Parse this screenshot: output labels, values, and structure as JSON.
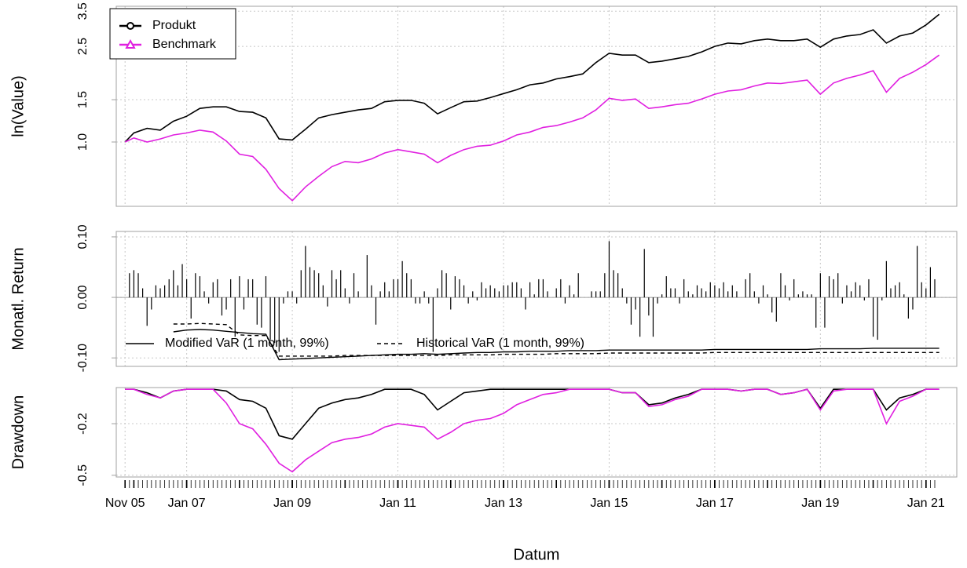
{
  "chart_data": [
    {
      "type": "line",
      "ylabel": "ln(Value)",
      "log": true,
      "ylim": [
        0.54,
        3.67
      ],
      "yticks": [
        {
          "value": 1,
          "label": "1.0"
        },
        1.5,
        2.5,
        3.5
      ],
      "grid": true,
      "legend": "topleft",
      "x": [
        "2005-11",
        "2006-01",
        "2006-04",
        "2006-07",
        "2006-10",
        "2007-01",
        "2007-04",
        "2007-07",
        "2007-10",
        "2008-01",
        "2008-04",
        "2008-07",
        "2008-10",
        "2009-01",
        "2009-04",
        "2009-07",
        "2009-10",
        "2010-01",
        "2010-04",
        "2010-07",
        "2010-10",
        "2011-01",
        "2011-04",
        "2011-07",
        "2011-10",
        "2012-01",
        "2012-04",
        "2012-07",
        "2012-10",
        "2013-01",
        "2013-04",
        "2013-07",
        "2013-10",
        "2014-01",
        "2014-04",
        "2014-07",
        "2014-10",
        "2015-01",
        "2015-04",
        "2015-07",
        "2015-10",
        "2016-01",
        "2016-04",
        "2016-07",
        "2016-10",
        "2017-01",
        "2017-04",
        "2017-07",
        "2017-10",
        "2018-01",
        "2018-04",
        "2018-07",
        "2018-10",
        "2019-01",
        "2019-04",
        "2019-07",
        "2019-10",
        "2020-01",
        "2020-04",
        "2020-07",
        "2020-10",
        "2021-01",
        "2021-04"
      ],
      "series": [
        {
          "name": "Produkt",
          "color": "#000000",
          "marker": "circle",
          "values": [
            1.0,
            1.09,
            1.14,
            1.12,
            1.22,
            1.28,
            1.38,
            1.4,
            1.4,
            1.34,
            1.33,
            1.26,
            1.03,
            1.02,
            1.13,
            1.26,
            1.3,
            1.33,
            1.36,
            1.38,
            1.47,
            1.49,
            1.49,
            1.45,
            1.31,
            1.39,
            1.47,
            1.48,
            1.53,
            1.59,
            1.65,
            1.73,
            1.76,
            1.83,
            1.87,
            1.92,
            2.14,
            2.34,
            2.3,
            2.3,
            2.14,
            2.17,
            2.22,
            2.27,
            2.37,
            2.5,
            2.58,
            2.56,
            2.64,
            2.68,
            2.64,
            2.64,
            2.68,
            2.48,
            2.68,
            2.76,
            2.8,
            2.93,
            2.58,
            2.76,
            2.84,
            3.07,
            3.4
          ]
        },
        {
          "name": "Benchmark",
          "color": "#e020e0",
          "marker": "triangle",
          "values": [
            1.0,
            1.04,
            1.0,
            1.03,
            1.07,
            1.09,
            1.12,
            1.1,
            1.01,
            0.89,
            0.87,
            0.77,
            0.64,
            0.57,
            0.65,
            0.72,
            0.79,
            0.83,
            0.82,
            0.85,
            0.9,
            0.93,
            0.91,
            0.89,
            0.82,
            0.88,
            0.93,
            0.96,
            0.97,
            1.01,
            1.07,
            1.1,
            1.15,
            1.17,
            1.21,
            1.26,
            1.36,
            1.52,
            1.49,
            1.51,
            1.38,
            1.4,
            1.43,
            1.45,
            1.51,
            1.58,
            1.63,
            1.65,
            1.71,
            1.76,
            1.75,
            1.78,
            1.81,
            1.58,
            1.76,
            1.84,
            1.9,
            1.98,
            1.61,
            1.84,
            1.95,
            2.1,
            2.3
          ]
        }
      ]
    },
    {
      "type": "bar",
      "ylabel": "Monatl. Return",
      "ylim": [
        -0.114,
        0.109
      ],
      "yticks": [
        {
          "value": 0.1,
          "label": "0.10"
        },
        {
          "value": 0,
          "label": "0.00"
        },
        {
          "value": -0.1,
          "label": "-0.10"
        }
      ],
      "grid": true,
      "color": "#000000",
      "x": [
        "2005-12",
        "2006-01",
        "2006-02",
        "2006-03",
        "2006-04",
        "2006-05",
        "2006-06",
        "2006-07",
        "2006-08",
        "2006-09",
        "2006-10",
        "2006-11",
        "2006-12",
        "2007-01",
        "2007-02",
        "2007-03",
        "2007-04",
        "2007-05",
        "2007-06",
        "2007-07",
        "2007-08",
        "2007-09",
        "2007-10",
        "2007-11",
        "2007-12",
        "2008-01",
        "2008-02",
        "2008-03",
        "2008-04",
        "2008-05",
        "2008-06",
        "2008-07",
        "2008-08",
        "2008-09",
        "2008-10",
        "2008-11",
        "2008-12",
        "2009-01",
        "2009-02",
        "2009-03",
        "2009-04",
        "2009-05",
        "2009-06",
        "2009-07",
        "2009-08",
        "2009-09",
        "2009-10",
        "2009-11",
        "2009-12",
        "2010-01",
        "2010-02",
        "2010-03",
        "2010-04",
        "2010-05",
        "2010-06",
        "2010-07",
        "2010-08",
        "2010-09",
        "2010-10",
        "2010-11",
        "2010-12",
        "2011-01",
        "2011-02",
        "2011-03",
        "2011-04",
        "2011-05",
        "2011-06",
        "2011-07",
        "2011-08",
        "2011-09",
        "2011-10",
        "2011-11",
        "2011-12",
        "2012-01",
        "2012-02",
        "2012-03",
        "2012-04",
        "2012-05",
        "2012-06",
        "2012-07",
        "2012-08",
        "2012-09",
        "2012-10",
        "2012-11",
        "2012-12",
        "2013-01",
        "2013-02",
        "2013-03",
        "2013-04",
        "2013-05",
        "2013-06",
        "2013-07",
        "2013-08",
        "2013-09",
        "2013-10",
        "2013-11",
        "2013-12",
        "2014-01",
        "2014-02",
        "2014-03",
        "2014-04",
        "2014-05",
        "2014-06",
        "2014-07",
        "2014-08",
        "2014-09",
        "2014-10",
        "2014-11",
        "2014-12",
        "2015-01",
        "2015-02",
        "2015-03",
        "2015-04",
        "2015-05",
        "2015-06",
        "2015-07",
        "2015-08",
        "2015-09",
        "2015-10",
        "2015-11",
        "2015-12",
        "2016-01",
        "2016-02",
        "2016-03",
        "2016-04",
        "2016-05",
        "2016-06",
        "2016-07",
        "2016-08",
        "2016-09",
        "2016-10",
        "2016-11",
        "2016-12",
        "2017-01",
        "2017-02",
        "2017-03",
        "2017-04",
        "2017-05",
        "2017-06",
        "2017-07",
        "2017-08",
        "2017-09",
        "2017-10",
        "2017-11",
        "2017-12",
        "2018-01",
        "2018-02",
        "2018-03",
        "2018-04",
        "2018-05",
        "2018-06",
        "2018-07",
        "2018-08",
        "2018-09",
        "2018-10",
        "2018-11",
        "2018-12",
        "2019-01",
        "2019-02",
        "2019-03",
        "2019-04",
        "2019-05",
        "2019-06",
        "2019-07",
        "2019-08",
        "2019-09",
        "2019-10",
        "2019-11",
        "2019-12",
        "2020-01",
        "2020-02",
        "2020-03",
        "2020-04",
        "2020-05",
        "2020-06",
        "2020-07",
        "2020-08",
        "2020-09",
        "2020-10",
        "2020-11",
        "2020-12",
        "2021-01",
        "2021-02",
        "2021-03"
      ],
      "values": [
        0.04,
        0.045,
        0.04,
        0.015,
        -0.047,
        -0.02,
        0.02,
        0.015,
        0.02,
        0.03,
        0.045,
        0.02,
        0.055,
        0.03,
        -0.035,
        0.04,
        0.035,
        0.01,
        -0.01,
        0.025,
        0.03,
        -0.03,
        -0.02,
        0.03,
        -0.065,
        0.035,
        -0.02,
        0.03,
        0.03,
        -0.045,
        -0.05,
        0.035,
        -0.07,
        -0.075,
        -0.09,
        -0.01,
        0.01,
        0.01,
        -0.01,
        0.045,
        0.085,
        0.05,
        0.045,
        0.04,
        0.02,
        -0.015,
        0.045,
        0.03,
        0.045,
        0.015,
        -0.01,
        0.04,
        0.01,
        0,
        0.07,
        0.02,
        -0.045,
        0.01,
        0.025,
        0.01,
        0.03,
        0.03,
        0.06,
        0.04,
        0.03,
        -0.01,
        -0.01,
        0.01,
        -0.01,
        -0.09,
        0.015,
        0.045,
        0.04,
        -0.02,
        0.035,
        0.03,
        0.02,
        -0.01,
        0.01,
        -0.005,
        0.025,
        0.015,
        0.02,
        0.015,
        0.01,
        0.02,
        0.02,
        0.025,
        0.025,
        0.015,
        -0.02,
        0.025,
        0.005,
        0.03,
        0.03,
        0.01,
        0,
        0.015,
        0.03,
        -0.01,
        0.02,
        0.005,
        0.04,
        0,
        0,
        0.01,
        0.01,
        0.01,
        0.04,
        0.093,
        0.045,
        0.04,
        0.015,
        -0.01,
        -0.045,
        -0.02,
        -0.065,
        0.08,
        -0.03,
        -0.065,
        -0.01,
        0.005,
        0.035,
        0.015,
        0.015,
        -0.01,
        0.03,
        0.01,
        0.005,
        0.02,
        0.015,
        0.01,
        0.025,
        0.02,
        0.015,
        0.025,
        0.01,
        0.02,
        0.01,
        0,
        0.03,
        0.04,
        0.01,
        -0.01,
        0.02,
        0.005,
        -0.025,
        -0.04,
        0.04,
        0.02,
        -0.005,
        0.03,
        0.005,
        0.01,
        0.005,
        0.005,
        -0.05,
        0.04,
        -0.05,
        0.035,
        0.03,
        0.04,
        -0.01,
        0.02,
        0.01,
        0.025,
        0.02,
        -0.005,
        0.03,
        -0.065,
        -0.07,
        -0.005,
        0.06,
        0.015,
        0.02,
        0.025,
        0.005,
        -0.035,
        -0.02,
        0.085,
        0.025,
        0.015,
        0.05,
        0.03
      ],
      "var_x": [
        "2005-11",
        "2006-01",
        "2006-04",
        "2006-07",
        "2006-10",
        "2007-01",
        "2007-04",
        "2007-07",
        "2007-10",
        "2008-01",
        "2008-04",
        "2008-07",
        "2008-10",
        "2009-01",
        "2009-04",
        "2009-07",
        "2009-10",
        "2010-01",
        "2010-04",
        "2010-07",
        "2010-10",
        "2011-01",
        "2011-04",
        "2011-07",
        "2011-10",
        "2012-01",
        "2012-04",
        "2012-07",
        "2012-10",
        "2013-01",
        "2013-04",
        "2013-07",
        "2013-10",
        "2014-01",
        "2014-04",
        "2014-07",
        "2014-10",
        "2015-01",
        "2015-04",
        "2015-07",
        "2015-10",
        "2016-01",
        "2016-04",
        "2016-07",
        "2016-10",
        "2017-01",
        "2017-04",
        "2017-07",
        "2017-10",
        "2018-01",
        "2018-04",
        "2018-07",
        "2018-10",
        "2019-01",
        "2019-04",
        "2019-07",
        "2019-10",
        "2020-01",
        "2020-04",
        "2020-07",
        "2020-10",
        "2021-01",
        "2021-04"
      ],
      "var_series": [
        {
          "name": "Modified VaR (1 month, 99%)",
          "color": "#000000",
          "dash": false,
          "values": [
            null,
            null,
            null,
            null,
            -0.057,
            -0.054,
            -0.053,
            -0.054,
            -0.056,
            -0.058,
            -0.06,
            -0.061,
            -0.103,
            -0.102,
            -0.101,
            -0.1,
            -0.099,
            -0.098,
            -0.097,
            -0.096,
            -0.095,
            -0.094,
            -0.094,
            -0.093,
            -0.094,
            -0.093,
            -0.092,
            -0.091,
            -0.091,
            -0.09,
            -0.09,
            -0.089,
            -0.089,
            -0.089,
            -0.088,
            -0.088,
            -0.088,
            -0.087,
            -0.087,
            -0.087,
            -0.087,
            -0.087,
            -0.087,
            -0.087,
            -0.087,
            -0.086,
            -0.086,
            -0.086,
            -0.086,
            -0.086,
            -0.086,
            -0.086,
            -0.086,
            -0.085,
            -0.085,
            -0.085,
            -0.085,
            -0.084,
            -0.084,
            -0.084,
            -0.084,
            -0.084,
            -0.084
          ]
        },
        {
          "name": "Historical VaR (1 month, 99%)",
          "color": "#000000",
          "dash": true,
          "values": [
            null,
            null,
            null,
            null,
            -0.044,
            -0.044,
            -0.043,
            -0.044,
            -0.045,
            -0.062,
            -0.063,
            -0.063,
            -0.097,
            -0.097,
            -0.097,
            -0.097,
            -0.097,
            -0.096,
            -0.096,
            -0.096,
            -0.096,
            -0.096,
            -0.096,
            -0.096,
            -0.096,
            -0.095,
            -0.095,
            -0.095,
            -0.095,
            -0.094,
            -0.094,
            -0.094,
            -0.094,
            -0.093,
            -0.093,
            -0.093,
            -0.093,
            -0.092,
            -0.092,
            -0.092,
            -0.092,
            -0.092,
            -0.092,
            -0.092,
            -0.092,
            -0.091,
            -0.091,
            -0.091,
            -0.091,
            -0.091,
            -0.091,
            -0.091,
            -0.091,
            -0.091,
            -0.091,
            -0.091,
            -0.091,
            -0.091,
            -0.091,
            -0.091,
            -0.091,
            -0.091,
            -0.091
          ]
        }
      ]
    },
    {
      "type": "line",
      "ylabel": "Drawdown",
      "ylim": [
        -0.51,
        0.01
      ],
      "yticks": [
        -0.2,
        -0.5
      ],
      "grid": true,
      "xlabel": "Datum",
      "xlim": [
        "2005-09",
        "2021-08"
      ],
      "xticks": [
        {
          "value": "2005-11",
          "label": "Nov 05"
        },
        {
          "value": "2007-01",
          "label": "Jan 07"
        },
        {
          "value": "2009-01",
          "label": "Jan 09"
        },
        {
          "value": "2011-01",
          "label": "Jan 11"
        },
        {
          "value": "2013-01",
          "label": "Jan 13"
        },
        {
          "value": "2015-01",
          "label": "Jan 15"
        },
        {
          "value": "2017-01",
          "label": "Jan 17"
        },
        {
          "value": "2019-01",
          "label": "Jan 19"
        },
        {
          "value": "2021-01",
          "label": "Jan 21"
        }
      ],
      "x": [
        "2005-11",
        "2006-01",
        "2006-04",
        "2006-07",
        "2006-10",
        "2007-01",
        "2007-04",
        "2007-07",
        "2007-10",
        "2008-01",
        "2008-04",
        "2008-07",
        "2008-10",
        "2009-01",
        "2009-04",
        "2009-07",
        "2009-10",
        "2010-01",
        "2010-04",
        "2010-07",
        "2010-10",
        "2011-01",
        "2011-04",
        "2011-07",
        "2011-10",
        "2012-01",
        "2012-04",
        "2012-07",
        "2012-10",
        "2013-01",
        "2013-04",
        "2013-07",
        "2013-10",
        "2014-01",
        "2014-04",
        "2014-07",
        "2014-10",
        "2015-01",
        "2015-04",
        "2015-07",
        "2015-10",
        "2016-01",
        "2016-04",
        "2016-07",
        "2016-10",
        "2017-01",
        "2017-04",
        "2017-07",
        "2017-10",
        "2018-01",
        "2018-04",
        "2018-07",
        "2018-10",
        "2019-01",
        "2019-04",
        "2019-07",
        "2019-10",
        "2020-01",
        "2020-04",
        "2020-07",
        "2020-10",
        "2021-01",
        "2021-04"
      ],
      "series": [
        {
          "color": "#000000",
          "values": [
            0,
            0,
            -0.02,
            -0.05,
            -0.01,
            0,
            0,
            0,
            -0.01,
            -0.06,
            -0.07,
            -0.11,
            -0.27,
            -0.29,
            -0.2,
            -0.11,
            -0.08,
            -0.06,
            -0.05,
            -0.03,
            0,
            0,
            0,
            -0.03,
            -0.12,
            -0.07,
            -0.02,
            -0.01,
            0,
            0,
            0,
            0,
            0,
            0,
            0,
            0,
            0,
            0,
            -0.02,
            -0.02,
            -0.09,
            -0.08,
            -0.05,
            -0.03,
            0,
            0,
            0,
            -0.01,
            0,
            0,
            -0.03,
            -0.02,
            0,
            -0.11,
            0,
            0,
            0,
            0,
            -0.12,
            -0.05,
            -0.03,
            0,
            0
          ]
        },
        {
          "color": "#e020e0",
          "values": [
            0,
            0,
            -0.03,
            -0.05,
            -0.01,
            0,
            0,
            0,
            -0.08,
            -0.2,
            -0.23,
            -0.32,
            -0.43,
            -0.48,
            -0.41,
            -0.36,
            -0.31,
            -0.29,
            -0.28,
            -0.26,
            -0.22,
            -0.2,
            -0.21,
            -0.22,
            -0.29,
            -0.25,
            -0.2,
            -0.18,
            -0.17,
            -0.14,
            -0.09,
            -0.06,
            -0.03,
            -0.02,
            0,
            0,
            0,
            0,
            -0.02,
            -0.02,
            -0.1,
            -0.09,
            -0.06,
            -0.04,
            0,
            0,
            0,
            -0.01,
            0,
            0,
            -0.03,
            -0.02,
            0,
            -0.12,
            -0.01,
            0,
            0,
            0,
            -0.2,
            -0.07,
            -0.04,
            0,
            0
          ]
        }
      ]
    }
  ]
}
